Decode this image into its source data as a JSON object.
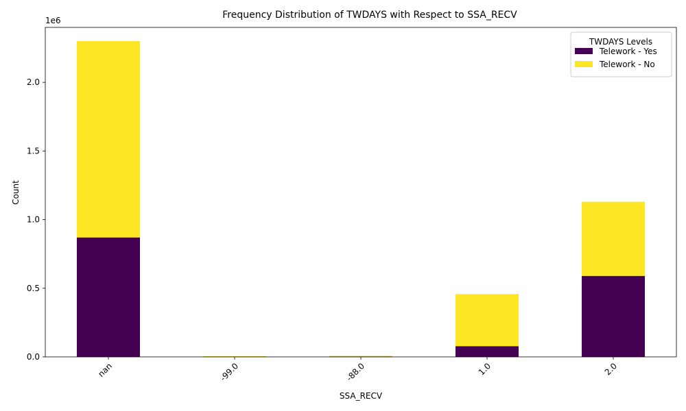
{
  "chart_data": {
    "type": "bar",
    "stacked": true,
    "title": "Frequency Distribution of TWDAYS with Respect to SSA_RECV",
    "xlabel": "SSA_RECV",
    "ylabel": "Count",
    "y_scale_label": "1e6",
    "categories": [
      "nan",
      "-99.0",
      "-88.0",
      "1.0",
      "2.0"
    ],
    "y_ticks": [
      "0.0",
      "0.5",
      "1.0",
      "1.5",
      "2.0"
    ],
    "ylim": [
      0,
      2400000
    ],
    "grid": false,
    "legend": {
      "title": "TWDAYS Levels",
      "placement": "top-right"
    },
    "series": [
      {
        "name": "Telework - Yes",
        "color": "#440154",
        "values": [
          870000,
          4000,
          3000,
          78000,
          590000
        ]
      },
      {
        "name": "Telework - No",
        "color": "#fde725",
        "values": [
          1430000,
          1000,
          5000,
          380000,
          540000
        ]
      }
    ]
  }
}
